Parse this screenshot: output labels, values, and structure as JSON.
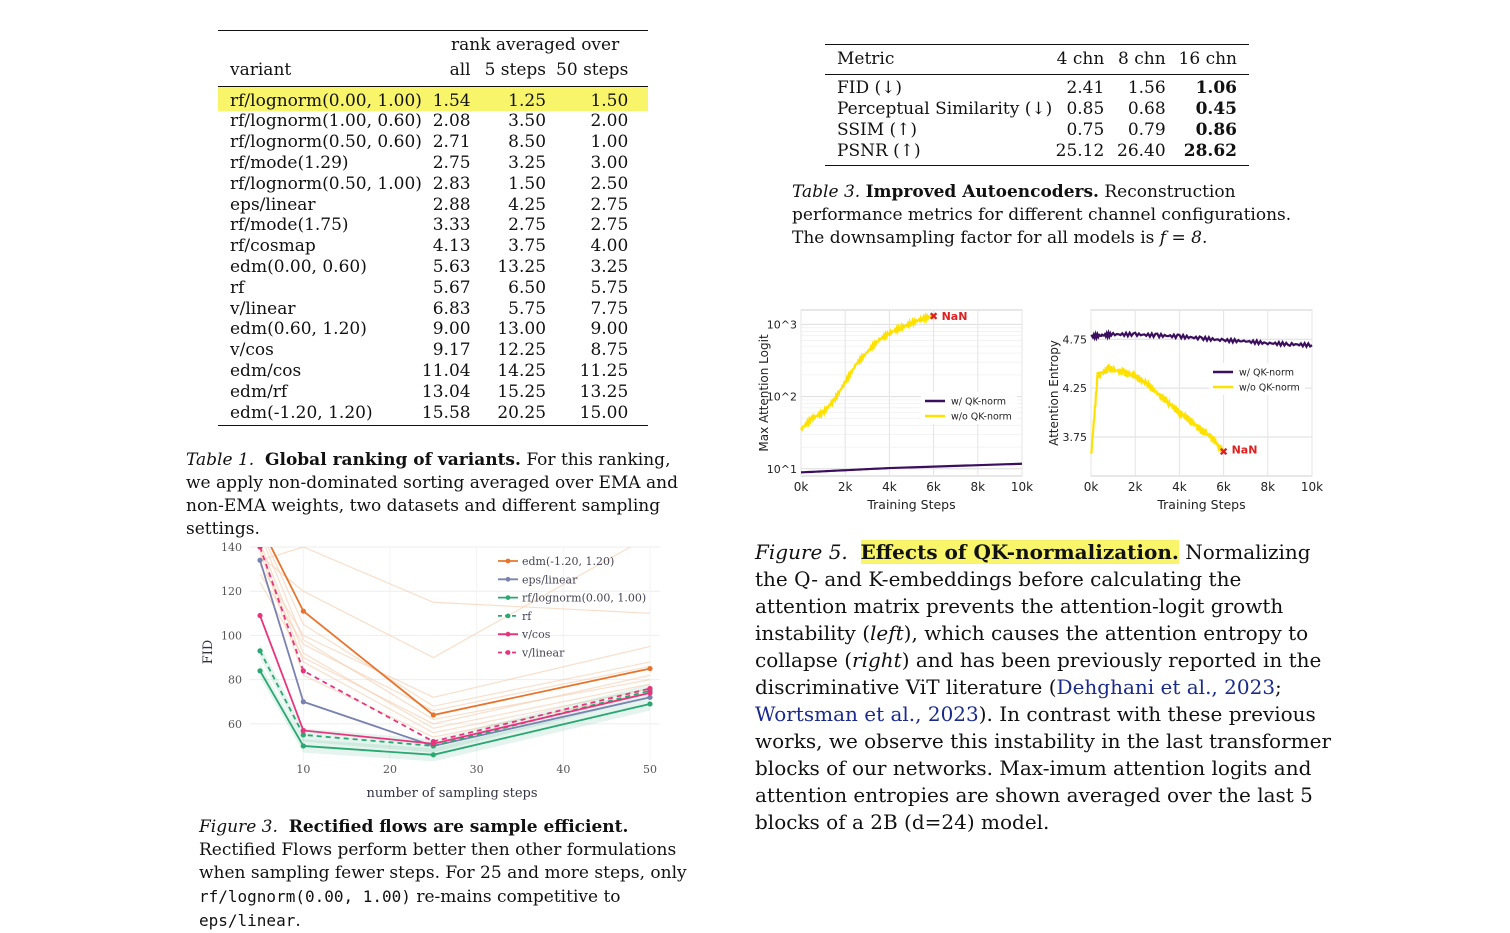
{
  "table1": {
    "group_header": "rank averaged over",
    "columns": [
      "variant",
      "all",
      "5 steps",
      "50 steps"
    ],
    "rows": [
      [
        "rf/lognorm(0.00, 1.00)",
        "1.54",
        "1.25",
        "1.50"
      ],
      [
        "rf/lognorm(1.00, 0.60)",
        "2.08",
        "3.50",
        "2.00"
      ],
      [
        "rf/lognorm(0.50, 0.60)",
        "2.71",
        "8.50",
        "1.00"
      ],
      [
        "rf/mode(1.29)",
        "2.75",
        "3.25",
        "3.00"
      ],
      [
        "rf/lognorm(0.50, 1.00)",
        "2.83",
        "1.50",
        "2.50"
      ],
      [
        "eps/linear",
        "2.88",
        "4.25",
        "2.75"
      ],
      [
        "rf/mode(1.75)",
        "3.33",
        "2.75",
        "2.75"
      ],
      [
        "rf/cosmap",
        "4.13",
        "3.75",
        "4.00"
      ],
      [
        "edm(0.00, 0.60)",
        "5.63",
        "13.25",
        "3.25"
      ],
      [
        "rf",
        "5.67",
        "6.50",
        "5.75"
      ],
      [
        "v/linear",
        "6.83",
        "5.75",
        "7.75"
      ],
      [
        "edm(0.60, 1.20)",
        "9.00",
        "13.00",
        "9.00"
      ],
      [
        "v/cos",
        "9.17",
        "12.25",
        "8.75"
      ],
      [
        "edm/cos",
        "11.04",
        "14.25",
        "11.25"
      ],
      [
        "edm/rf",
        "13.04",
        "15.25",
        "13.25"
      ],
      [
        "edm(-1.20, 1.20)",
        "15.58",
        "20.25",
        "15.00"
      ]
    ],
    "caption_label": "Table 1.",
    "caption_title": "Global ranking of variants.",
    "caption_text": "For this ranking, we apply non-dominated sorting averaged over EMA and non-EMA weights, two datasets and different sampling settings."
  },
  "table3": {
    "columns": [
      "Metric",
      "4 chn",
      "8 chn",
      "16 chn"
    ],
    "rows": [
      [
        "FID (↓)",
        "2.41",
        "1.56",
        "1.06"
      ],
      [
        "Perceptual Similarity (↓)",
        "0.85",
        "0.68",
        "0.45"
      ],
      [
        "SSIM (↑)",
        "0.75",
        "0.79",
        "0.86"
      ],
      [
        "PSNR (↑)",
        "25.12",
        "26.40",
        "28.62"
      ]
    ],
    "caption_label": "Table 3.",
    "caption_title": "Improved Autoencoders.",
    "caption_text_1": "Reconstruction performance metrics for different channel configurations. The downsampling factor for all models is",
    "caption_math": "f = 8."
  },
  "figure3": {
    "caption_label": "Figure 3.",
    "caption_title": "Rectified flows are sample efficient.",
    "caption_text_1": "Rectified Flows perform better then other formulations when sampling fewer steps. For 25 and more steps, only",
    "caption_code_1": "rf/lognorm(0.00, 1.00)",
    "caption_text_2": "re-mains competitive to",
    "caption_code_2": "eps/linear",
    "caption_text_3": "."
  },
  "figure5": {
    "caption_label": "Figure 5.",
    "caption_title": "Effects of QK-normalization.",
    "caption_p1": "Normalizing the Q- and K-embeddings before calculating the attention matrix prevents the attention-logit growth instability (",
    "caption_left": "left",
    "caption_p2": "), which causes the attention entropy to collapse (",
    "caption_right": "right",
    "caption_p3": ") and has been previously reported in the discriminative ViT literature (",
    "caption_cite1": "Dehghani et al., 2023",
    "caption_sep": "; ",
    "caption_cite2": "Wortsman et al., 2023",
    "caption_p4": "). In contrast with these previous works, we observe this instability in the last transformer blocks of our networks. Max-imum attention logits and attention entropies are shown averaged over the last 5 blocks of a 2B (d=24) model."
  },
  "chart_data": [
    {
      "type": "line",
      "xlabel": "number of sampling steps",
      "ylabel": "FID",
      "x": [
        5,
        10,
        25,
        50
      ],
      "xticks": [
        10,
        20,
        30,
        40,
        50
      ],
      "yticks": [
        60,
        80,
        100,
        120,
        140
      ],
      "xlim": [
        5,
        50
      ],
      "ylim": [
        45,
        140
      ],
      "legend_position": "top-right",
      "series": [
        {
          "name": "edm(-1.20, 1.20)",
          "color": "#e8742c",
          "dash": false,
          "values": [
            150,
            111,
            64,
            85
          ]
        },
        {
          "name": "eps/linear",
          "color": "#7a82b0",
          "dash": false,
          "values": [
            134,
            70,
            50,
            72
          ]
        },
        {
          "name": "rf/lognorm(0.00, 1.00)",
          "color": "#2aa872",
          "dash": false,
          "values": [
            84,
            50,
            46,
            69
          ]
        },
        {
          "name": "rf",
          "color": "#2aa872",
          "dash": true,
          "values": [
            93,
            55,
            50,
            75
          ]
        },
        {
          "name": "v/cos",
          "color": "#e8347c",
          "dash": false,
          "values": [
            109,
            57,
            51,
            74
          ]
        },
        {
          "name": "v/linear",
          "color": "#e8347c",
          "dash": true,
          "values": [
            140,
            84,
            52,
            76
          ]
        }
      ],
      "background_series": [
        [
          148,
          105,
          68,
          88
        ],
        [
          146,
          98,
          62,
          80
        ],
        [
          142,
          92,
          58,
          78
        ],
        [
          140,
          88,
          56,
          76
        ],
        [
          138,
          82,
          54,
          74
        ],
        [
          136,
          120,
          90,
          145
        ],
        [
          134,
          140,
          115,
          110
        ],
        [
          132,
          100,
          72,
          95
        ],
        [
          128,
          96,
          66,
          86
        ],
        [
          124,
          90,
          60,
          82
        ]
      ]
    },
    {
      "type": "line",
      "xlabel": "Training Steps",
      "ylabel": "Max Attention Logit",
      "yscale": "log",
      "x_ticklabels": [
        "0k",
        "2k",
        "4k",
        "6k",
        "8k",
        "10k"
      ],
      "y_ticklabels": [
        "10^1",
        "10^2",
        "10^3"
      ],
      "xlim": [
        0,
        10000
      ],
      "ylim_log10": [
        0.9,
        3.2
      ],
      "legend_position": "center-right",
      "annotation": "NaN",
      "series": [
        {
          "name": "w/ QK-norm",
          "color": "#3b0f5e",
          "x": [
            0,
            2000,
            4000,
            6000,
            8000,
            10000
          ],
          "log10_values": [
            0.95,
            0.98,
            1.01,
            1.03,
            1.05,
            1.07
          ]
        },
        {
          "name": "w/o QK-norm",
          "color": "#ffe100",
          "x": [
            0,
            500,
            1000,
            1500,
            2000,
            2500,
            3000,
            3500,
            4000,
            4500,
            5000,
            5500,
            6000
          ],
          "log10_values": [
            1.55,
            1.7,
            1.78,
            1.95,
            2.2,
            2.45,
            2.62,
            2.78,
            2.88,
            2.95,
            3.02,
            3.08,
            3.12
          ]
        }
      ]
    },
    {
      "type": "line",
      "xlabel": "Training Steps",
      "ylabel": "Attention Entropy",
      "x_ticklabels": [
        "0k",
        "2k",
        "4k",
        "6k",
        "8k",
        "10k"
      ],
      "y_ticklabels": [
        "3.75",
        "4.25",
        "4.75"
      ],
      "xlim": [
        0,
        10000
      ],
      "ylim": [
        3.35,
        5.05
      ],
      "legend_position": "center-right",
      "annotation": "NaN",
      "series": [
        {
          "name": "w/ QK-norm",
          "color": "#3b0f5e",
          "x": [
            0,
            500,
            1000,
            2000,
            3000,
            4000,
            5000,
            6000,
            7000,
            8000,
            9000,
            10000
          ],
          "values": [
            4.78,
            4.79,
            4.8,
            4.8,
            4.79,
            4.78,
            4.76,
            4.74,
            4.73,
            4.71,
            4.7,
            4.69
          ]
        },
        {
          "name": "w/o QK-norm",
          "color": "#ffe100",
          "x": [
            0,
            300,
            800,
            1500,
            2000,
            2500,
            3000,
            3500,
            4000,
            4500,
            5000,
            5500,
            5800,
            6000
          ],
          "values": [
            3.55,
            4.38,
            4.45,
            4.41,
            4.37,
            4.3,
            4.2,
            4.1,
            4.0,
            3.92,
            3.82,
            3.74,
            3.65,
            3.6
          ]
        }
      ]
    }
  ]
}
